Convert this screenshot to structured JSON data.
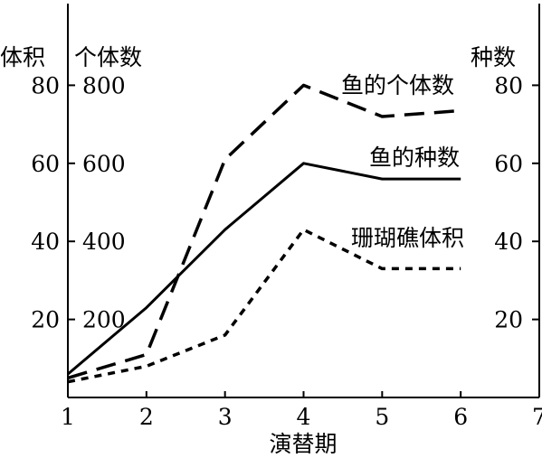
{
  "chart_data": {
    "type": "line",
    "xlabel": "演替期",
    "x_ticks": [
      "1",
      "2",
      "3",
      "4",
      "5",
      "6",
      "7"
    ],
    "xlim": [
      1,
      7
    ],
    "axes": {
      "left_outer": {
        "label": "体积",
        "ticks": [
          "20",
          "40",
          "60",
          "80"
        ],
        "ylim": [
          0,
          100
        ]
      },
      "left_inner": {
        "label": "个体数",
        "ticks": [
          "200",
          "400",
          "600",
          "800"
        ],
        "ylim": [
          0,
          1000
        ]
      },
      "right": {
        "label": "种数",
        "ticks": [
          "20",
          "40",
          "60",
          "80"
        ],
        "ylim": [
          0,
          100
        ]
      }
    },
    "series": [
      {
        "name": "鱼的个体数",
        "axis": "left_inner",
        "style": "long-dash",
        "x": [
          1,
          2,
          3,
          4,
          5,
          6
        ],
        "y": [
          50,
          110,
          610,
          800,
          720,
          735
        ]
      },
      {
        "name": "鱼的种数",
        "axis": "right",
        "style": "solid",
        "x": [
          1,
          2,
          3,
          4,
          5,
          6
        ],
        "y": [
          6,
          23,
          43,
          60,
          56,
          56
        ]
      },
      {
        "name": "珊瑚礁体积",
        "axis": "left_outer",
        "style": "short-dash",
        "x": [
          1,
          2,
          3,
          4,
          5,
          6
        ],
        "y": [
          4,
          8,
          16,
          43,
          33,
          33
        ]
      }
    ],
    "grid": false,
    "legend": "inline labels near line ends"
  }
}
